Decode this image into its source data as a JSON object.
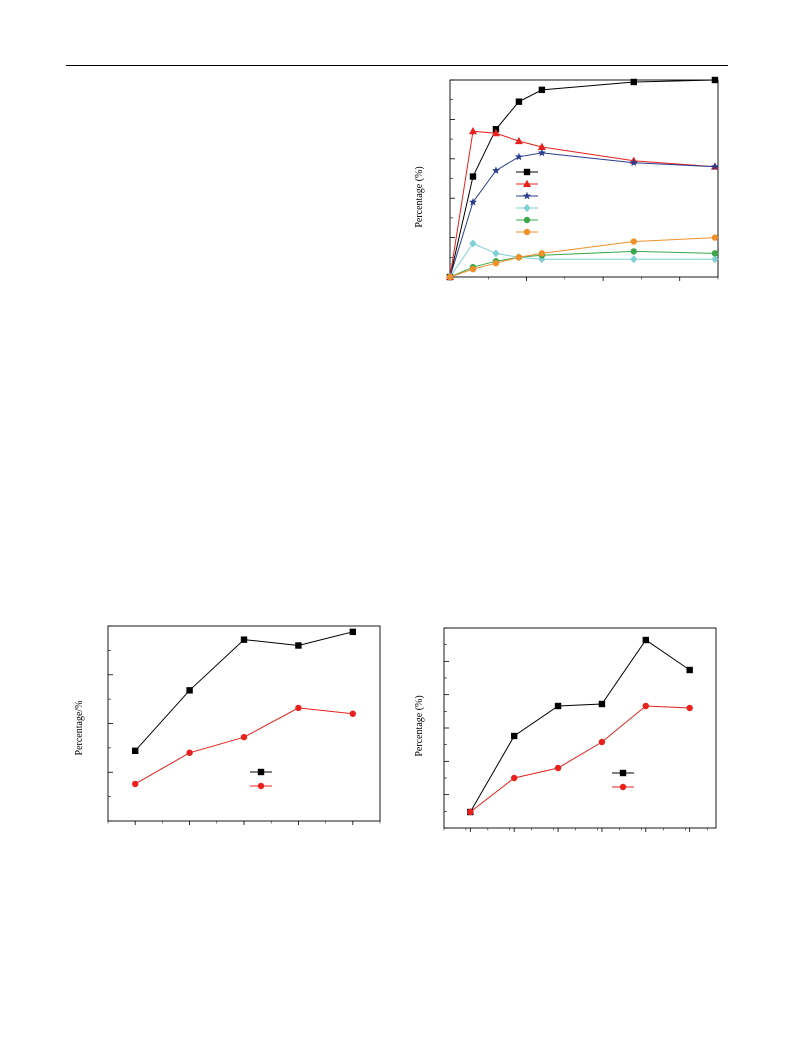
{
  "page": {
    "header_rule": true
  },
  "figures": [
    {
      "ylabel": "Percentage (%)",
      "chart_data": {
        "type": "line",
        "ylabel": "Percentage (%)",
        "xlim": [
          0,
          17.5
        ],
        "ylim": [
          0,
          100
        ],
        "series": [
          {
            "color": "#000000",
            "marker": "square",
            "x": [
              0,
              1.5,
              3,
              4.5,
              6,
              12,
              17.3
            ],
            "y": [
              0,
              51,
              75,
              89,
              95,
              99,
              100
            ]
          },
          {
            "color": "#e8211c",
            "marker": "triangle",
            "x": [
              0,
              1.5,
              3,
              4.5,
              6,
              12,
              17.3
            ],
            "y": [
              0,
              74,
              73,
              69,
              66,
              59,
              56
            ]
          },
          {
            "color": "#2a3d8f",
            "marker": "star",
            "x": [
              0,
              1.5,
              3,
              4.5,
              6,
              12,
              17.3
            ],
            "y": [
              0,
              38,
              54,
              61,
              63,
              58,
              56
            ]
          },
          {
            "color": "#7fcfd3",
            "marker": "diamond",
            "x": [
              0,
              1.5,
              3,
              4.5,
              6,
              12,
              17.3
            ],
            "y": [
              0,
              17,
              12,
              10,
              9,
              9,
              9
            ]
          },
          {
            "color": "#3aa84b",
            "marker": "circle",
            "x": [
              0,
              1.5,
              3,
              4.5,
              6,
              12,
              17.3
            ],
            "y": [
              0,
              5,
              8,
              10,
              11,
              13,
              12
            ]
          },
          {
            "color": "#f0902a",
            "marker": "circle",
            "x": [
              0,
              1.5,
              3,
              4.5,
              6,
              12,
              17.3
            ],
            "y": [
              0,
              4,
              7,
              10,
              12,
              18,
              20
            ]
          }
        ],
        "legend": "center-left"
      }
    },
    {
      "ylabel": "Percentage/%",
      "chart_data": {
        "type": "line",
        "ylabel": "Percentage/%",
        "xlim": [
          0.5,
          5.5
        ],
        "ylim": [
          0,
          100
        ],
        "series": [
          {
            "color": "#000000",
            "marker": "square",
            "x": [
              1,
              2,
              3,
              4,
              5
            ],
            "y": [
              36,
              67,
              93,
              90,
              97
            ]
          },
          {
            "color": "#e8211c",
            "marker": "circle",
            "x": [
              1,
              2,
              3,
              4,
              5
            ],
            "y": [
              19,
              35,
              43,
              58,
              55
            ]
          }
        ],
        "legend": "bottom-right"
      }
    },
    {
      "ylabel": "Percentage (%)",
      "chart_data": {
        "type": "line",
        "ylabel": "Percentage (%)",
        "xlim": [
          -0.6,
          5.6
        ],
        "ylim": [
          0,
          100
        ],
        "series": [
          {
            "color": "#000000",
            "marker": "square",
            "x": [
              0,
              1,
              2,
              3,
              4,
              5
            ],
            "y": [
              8,
              46,
              61,
              62,
              94,
              79
            ]
          },
          {
            "color": "#e8211c",
            "marker": "circle",
            "x": [
              0,
              1,
              2,
              3,
              4,
              5
            ],
            "y": [
              8,
              25,
              30,
              43,
              61,
              60
            ]
          }
        ],
        "legend": "bottom-right"
      }
    }
  ]
}
